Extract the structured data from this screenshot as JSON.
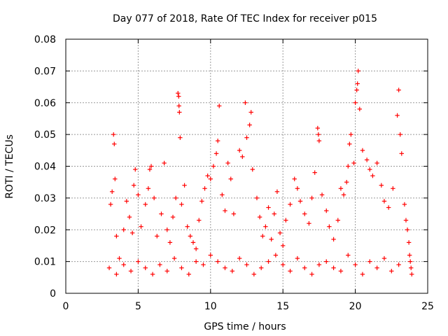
{
  "chart_data": {
    "type": "scatter",
    "title": "Day 077 of 2018, Rate Of TEC Index for receiver p015",
    "xlabel": "GPS time / hours",
    "ylabel": "ROTI / TECUs",
    "xlim": [
      0,
      25
    ],
    "ylim": [
      0,
      0.08
    ],
    "x_ticks": [
      0,
      5,
      10,
      15,
      20,
      25
    ],
    "x_tick_labels": [
      "0",
      "5",
      "10",
      "15",
      "20",
      "25"
    ],
    "y_ticks": [
      0,
      0.01,
      0.02,
      0.03,
      0.04,
      0.05,
      0.06,
      0.07,
      0.08
    ],
    "y_tick_labels": [
      "0",
      "0.01",
      "0.02",
      "0.03",
      "0.04",
      "0.05",
      "0.06",
      "0.07",
      "0.08"
    ],
    "grid": true,
    "marker": "+",
    "series": [
      {
        "name": "ROTI",
        "color": "#ff0000",
        "points": [
          [
            3.0,
            0.008
          ],
          [
            3.1,
            0.028
          ],
          [
            3.2,
            0.032
          ],
          [
            3.3,
            0.05
          ],
          [
            3.35,
            0.047
          ],
          [
            3.4,
            0.036
          ],
          [
            3.5,
            0.018
          ],
          [
            3.7,
            0.011
          ],
          [
            4.0,
            0.02
          ],
          [
            4.2,
            0.029
          ],
          [
            4.4,
            0.024
          ],
          [
            4.6,
            0.019
          ],
          [
            4.7,
            0.034
          ],
          [
            4.8,
            0.039
          ],
          [
            5.0,
            0.031
          ],
          [
            5.2,
            0.021
          ],
          [
            5.5,
            0.028
          ],
          [
            5.7,
            0.033
          ],
          [
            5.8,
            0.039
          ],
          [
            5.9,
            0.04
          ],
          [
            6.1,
            0.03
          ],
          [
            6.3,
            0.018
          ],
          [
            6.6,
            0.025
          ],
          [
            6.8,
            0.041
          ],
          [
            7.0,
            0.02
          ],
          [
            7.2,
            0.016
          ],
          [
            7.4,
            0.024
          ],
          [
            7.6,
            0.03
          ],
          [
            7.75,
            0.063
          ],
          [
            7.8,
            0.062
          ],
          [
            7.82,
            0.059
          ],
          [
            7.85,
            0.057
          ],
          [
            7.9,
            0.049
          ],
          [
            8.0,
            0.028
          ],
          [
            8.2,
            0.034
          ],
          [
            8.4,
            0.021
          ],
          [
            8.6,
            0.018
          ],
          [
            8.8,
            0.016
          ],
          [
            9.0,
            0.014
          ],
          [
            9.2,
            0.023
          ],
          [
            9.4,
            0.029
          ],
          [
            9.6,
            0.033
          ],
          [
            9.8,
            0.037
          ],
          [
            10.0,
            0.036
          ],
          [
            10.2,
            0.04
          ],
          [
            10.4,
            0.044
          ],
          [
            10.5,
            0.048
          ],
          [
            10.6,
            0.059
          ],
          [
            10.8,
            0.031
          ],
          [
            11.0,
            0.026
          ],
          [
            11.2,
            0.041
          ],
          [
            11.4,
            0.036
          ],
          [
            11.6,
            0.025
          ],
          [
            12.0,
            0.045
          ],
          [
            12.2,
            0.043
          ],
          [
            12.4,
            0.06
          ],
          [
            12.5,
            0.049
          ],
          [
            12.7,
            0.053
          ],
          [
            12.8,
            0.057
          ],
          [
            12.9,
            0.039
          ],
          [
            13.2,
            0.03
          ],
          [
            13.4,
            0.024
          ],
          [
            13.6,
            0.018
          ],
          [
            13.8,
            0.021
          ],
          [
            14.0,
            0.027
          ],
          [
            14.2,
            0.017
          ],
          [
            14.4,
            0.025
          ],
          [
            14.6,
            0.032
          ],
          [
            14.8,
            0.019
          ],
          [
            15.0,
            0.015
          ],
          [
            15.2,
            0.023
          ],
          [
            15.5,
            0.028
          ],
          [
            15.8,
            0.036
          ],
          [
            16.0,
            0.033
          ],
          [
            16.2,
            0.029
          ],
          [
            16.5,
            0.025
          ],
          [
            16.8,
            0.022
          ],
          [
            17.0,
            0.03
          ],
          [
            17.2,
            0.038
          ],
          [
            17.4,
            0.052
          ],
          [
            17.45,
            0.05
          ],
          [
            17.5,
            0.048
          ],
          [
            17.7,
            0.031
          ],
          [
            18.0,
            0.026
          ],
          [
            18.2,
            0.021
          ],
          [
            18.5,
            0.017
          ],
          [
            18.8,
            0.023
          ],
          [
            19.0,
            0.033
          ],
          [
            19.2,
            0.031
          ],
          [
            19.4,
            0.035
          ],
          [
            19.5,
            0.04
          ],
          [
            19.6,
            0.047
          ],
          [
            19.7,
            0.05
          ],
          [
            19.9,
            0.041
          ],
          [
            20.0,
            0.06
          ],
          [
            20.1,
            0.064
          ],
          [
            20.15,
            0.066
          ],
          [
            20.2,
            0.07
          ],
          [
            20.3,
            0.058
          ],
          [
            20.5,
            0.045
          ],
          [
            20.8,
            0.042
          ],
          [
            21.0,
            0.039
          ],
          [
            21.2,
            0.037
          ],
          [
            21.5,
            0.041
          ],
          [
            21.8,
            0.034
          ],
          [
            22.0,
            0.029
          ],
          [
            22.3,
            0.027
          ],
          [
            22.6,
            0.033
          ],
          [
            22.9,
            0.056
          ],
          [
            23.0,
            0.064
          ],
          [
            23.1,
            0.05
          ],
          [
            23.2,
            0.044
          ],
          [
            23.4,
            0.028
          ],
          [
            23.5,
            0.023
          ],
          [
            23.6,
            0.02
          ],
          [
            23.7,
            0.016
          ],
          [
            23.75,
            0.012
          ],
          [
            23.8,
            0.01
          ],
          [
            23.85,
            0.008
          ],
          [
            23.9,
            0.006
          ],
          [
            3.5,
            0.006
          ],
          [
            4.0,
            0.009
          ],
          [
            4.5,
            0.007
          ],
          [
            5.0,
            0.01
          ],
          [
            5.5,
            0.008
          ],
          [
            6.0,
            0.006
          ],
          [
            6.5,
            0.009
          ],
          [
            7.0,
            0.007
          ],
          [
            7.5,
            0.011
          ],
          [
            8.0,
            0.008
          ],
          [
            8.5,
            0.006
          ],
          [
            9.0,
            0.01
          ],
          [
            9.5,
            0.009
          ],
          [
            10.0,
            0.012
          ],
          [
            10.5,
            0.01
          ],
          [
            11.0,
            0.008
          ],
          [
            11.5,
            0.007
          ],
          [
            12.0,
            0.011
          ],
          [
            12.5,
            0.009
          ],
          [
            13.0,
            0.006
          ],
          [
            13.5,
            0.008
          ],
          [
            14.0,
            0.01
          ],
          [
            14.5,
            0.012
          ],
          [
            15.0,
            0.009
          ],
          [
            15.5,
            0.007
          ],
          [
            16.0,
            0.011
          ],
          [
            16.5,
            0.008
          ],
          [
            17.0,
            0.006
          ],
          [
            17.5,
            0.009
          ],
          [
            18.0,
            0.01
          ],
          [
            18.5,
            0.008
          ],
          [
            19.0,
            0.007
          ],
          [
            19.5,
            0.012
          ],
          [
            20.0,
            0.009
          ],
          [
            20.5,
            0.006
          ],
          [
            21.0,
            0.01
          ],
          [
            21.5,
            0.008
          ],
          [
            22.0,
            0.011
          ],
          [
            22.5,
            0.007
          ],
          [
            23.0,
            0.009
          ]
        ]
      }
    ]
  }
}
